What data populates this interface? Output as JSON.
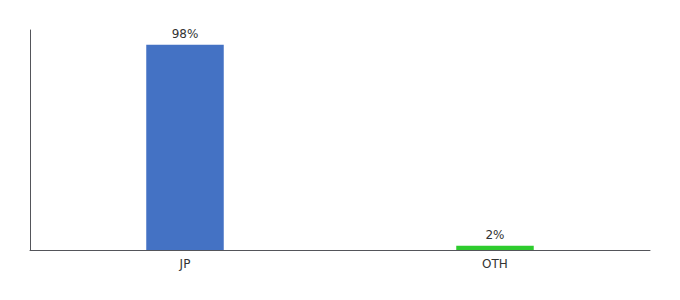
{
  "chart_data": {
    "type": "bar",
    "categories": [
      "JP",
      "OTH"
    ],
    "values": [
      98,
      2
    ],
    "colors": [
      "#4472c4",
      "#2ecc2e"
    ],
    "value_labels": [
      "98%",
      "2%"
    ],
    "data_labels": true,
    "ylim": [
      0,
      105
    ],
    "tick_labels": "x",
    "grid": false
  }
}
